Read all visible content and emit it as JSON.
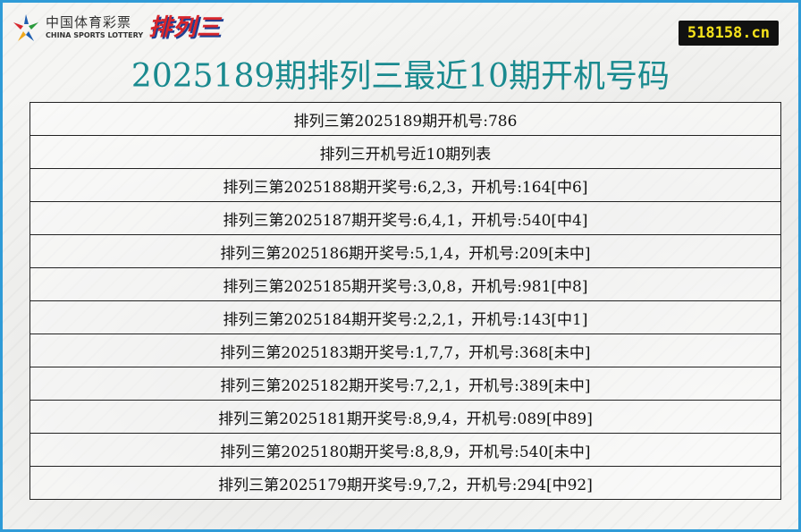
{
  "logo": {
    "cn": "中国体育彩票",
    "en": "CHINA SPORTS LOTTERY",
    "brand": "排列三"
  },
  "site": "518158.cn",
  "title": "2025189期排列三最近10期开机号码",
  "rows": [
    "排列三第2025189期开机号:786",
    "排列三开机号近10期列表",
    "排列三第2025188期开奖号:6,2,3，开机号:164[中6]",
    "排列三第2025187期开奖号:6,4,1，开机号:540[中4]",
    "排列三第2025186期开奖号:5,1,4，开机号:209[未中]",
    "排列三第2025185期开奖号:3,0,8，开机号:981[中8]",
    "排列三第2025184期开奖号:2,2,1，开机号:143[中1]",
    "排列三第2025183期开奖号:1,7,7，开机号:368[未中]",
    "排列三第2025182期开奖号:7,2,1，开机号:389[未中]",
    "排列三第2025181期开奖号:8,9,4，开机号:089[中89]",
    "排列三第2025180期开奖号:8,8,9，开机号:540[未中]",
    "排列三第2025179期开奖号:9,7,2，开机号:294[中92]"
  ]
}
